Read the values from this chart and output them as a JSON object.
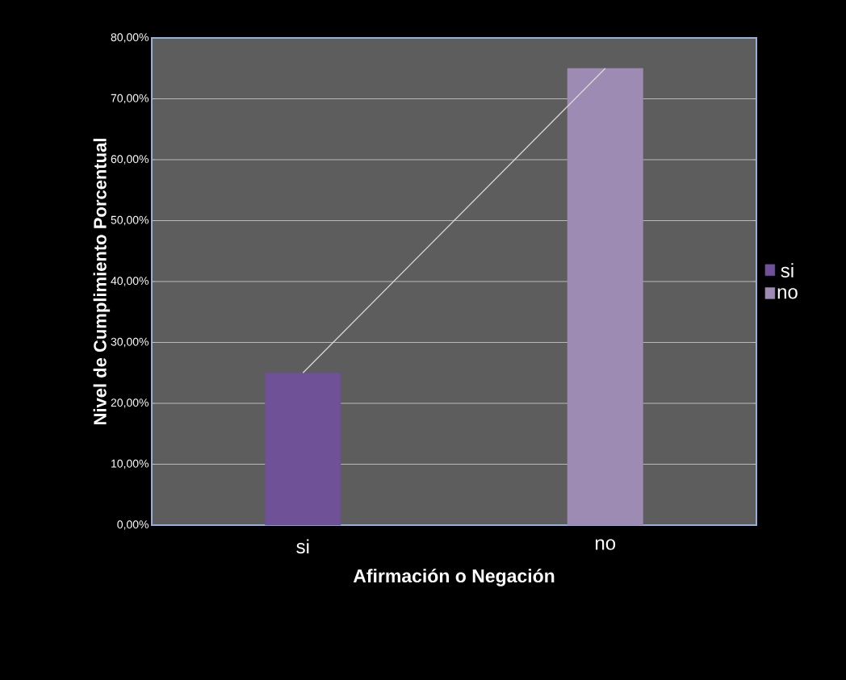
{
  "chart_data": {
    "type": "bar",
    "xlabel": "Afirmación o Negación",
    "ylabel": "Nivel  de Cumplimiento Porcentual",
    "categories": [
      "si",
      "no"
    ],
    "series": [
      {
        "name": "si",
        "color": "#6e5196",
        "values": [
          25,
          null
        ]
      },
      {
        "name": "no",
        "color": "#9d8bb4",
        "values": [
          null,
          75
        ]
      },
      {
        "type": "line",
        "color": "#d9d9d9",
        "values": [
          25,
          75
        ]
      }
    ],
    "ylim": [
      0,
      80
    ],
    "yticks": [
      {
        "value": 0,
        "label": "0,00%"
      },
      {
        "value": 10,
        "label": "10,00%"
      },
      {
        "value": 20,
        "label": "20,00%"
      },
      {
        "value": 30,
        "label": "30,00%"
      },
      {
        "value": 40,
        "label": "40,00%"
      },
      {
        "value": 50,
        "label": "50,00%"
      },
      {
        "value": 60,
        "label": "60,00%"
      },
      {
        "value": 70,
        "label": "70,00%"
      },
      {
        "value": 80,
        "label": "80,00%"
      }
    ],
    "grid": "y",
    "legend": "right"
  }
}
